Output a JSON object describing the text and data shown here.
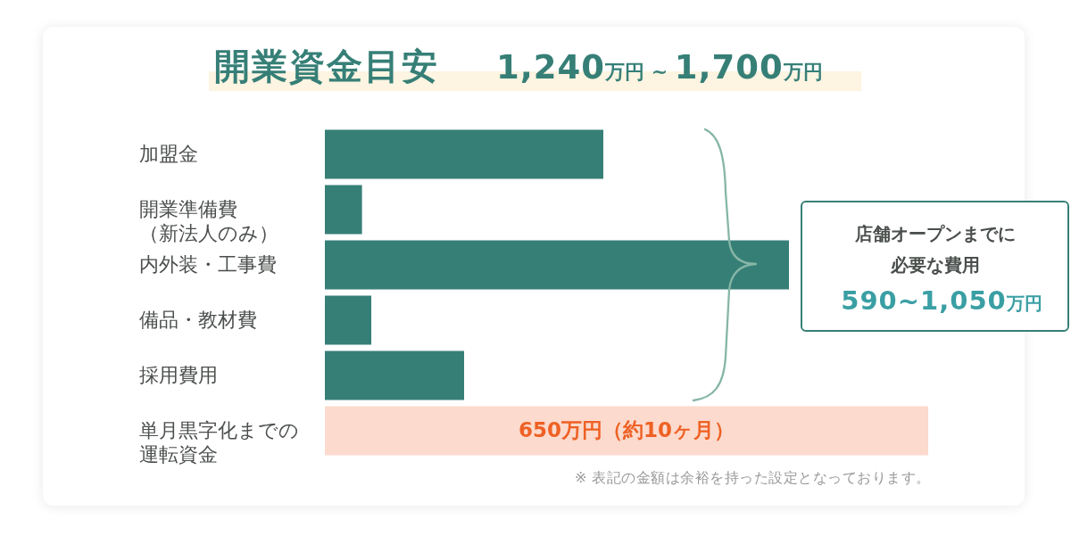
{
  "chart_data": {
    "type": "bar",
    "orientation": "horizontal",
    "title": "開業資金目安",
    "subtitle": "1,240万円 ~ 1,700万円",
    "categories": [
      "加盟金",
      "開業準備費（新法人のみ）",
      "内外装・工事費",
      "備品・教材費",
      "採用費用",
      "単月黒字化までの運転資金"
    ],
    "values": [
      300,
      40,
      500,
      50,
      150,
      650
    ],
    "colors": [
      "#367f77",
      "#367f77",
      "#367f77",
      "#367f77",
      "#367f77",
      "#fcdacd"
    ],
    "value_labels": [
      null,
      null,
      null,
      null,
      null,
      "650万円（約10ヶ月）"
    ],
    "tick_labels": "y",
    "annotations": [
      "店舗オープンまでに必要な費用",
      "590~1,050万円",
      "※ 表記の金額は余裕を持った設定となっております。"
    ]
  }
}
